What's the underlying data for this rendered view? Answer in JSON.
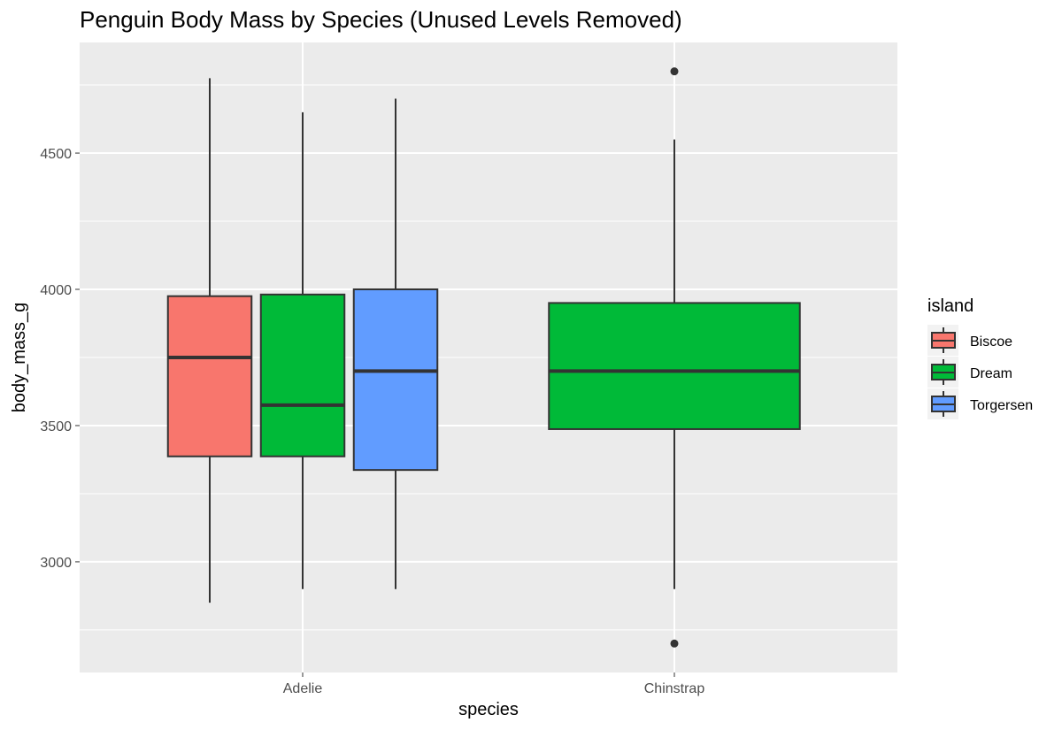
{
  "chart_data": {
    "type": "boxplot",
    "title": "Penguin Body Mass by Species (Unused Levels Removed)",
    "xlabel": "species",
    "ylabel": "body_mass_g",
    "ylim": [
      2650,
      4850
    ],
    "y_ticks": [
      3000,
      3500,
      4000,
      4500
    ],
    "categories": [
      "Adelie",
      "Chinstrap"
    ],
    "grid": true,
    "legend": {
      "title": "island",
      "position": "right",
      "entries": [
        {
          "name": "Biscoe",
          "color": "#F8766D"
        },
        {
          "name": "Dream",
          "color": "#00BA38"
        },
        {
          "name": "Torgersen",
          "color": "#619CFF"
        }
      ]
    },
    "series": [
      {
        "category": "Adelie",
        "island": "Biscoe",
        "lower_whisker": 2850,
        "q1": 3387,
        "median": 3750,
        "q3": 3975,
        "upper_whisker": 4775,
        "outliers": []
      },
      {
        "category": "Adelie",
        "island": "Dream",
        "lower_whisker": 2900,
        "q1": 3387,
        "median": 3575,
        "q3": 3981,
        "upper_whisker": 4650,
        "outliers": []
      },
      {
        "category": "Adelie",
        "island": "Torgersen",
        "lower_whisker": 2900,
        "q1": 3337,
        "median": 3700,
        "q3": 4000,
        "upper_whisker": 4700,
        "outliers": []
      },
      {
        "category": "Chinstrap",
        "island": "Dream",
        "lower_whisker": 2900,
        "q1": 3487,
        "median": 3700,
        "q3": 3950,
        "upper_whisker": 4550,
        "outliers": [
          2700,
          4800
        ]
      }
    ]
  }
}
